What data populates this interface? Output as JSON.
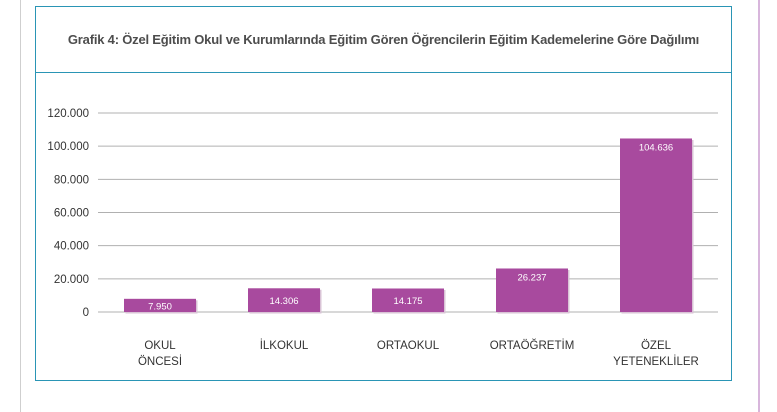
{
  "chart_data": {
    "type": "bar",
    "title": "Grafik 4: Özel Eğitim Okul ve Kurumlarında Eğitim Gören Öğrencilerin Eğitim Kademelerine Göre Dağılımı",
    "categories": [
      [
        "OKUL",
        "ÖNCESİ"
      ],
      [
        "İLKOKUL"
      ],
      [
        "ORTAOKUL"
      ],
      [
        "ORTAÖĞRETİM"
      ],
      [
        "ÖZEL",
        "YETENEKLİLER"
      ]
    ],
    "values": [
      7950,
      14306,
      14175,
      26237,
      104636
    ],
    "data_labels": [
      "7.950",
      "14.306",
      "14.175",
      "26.237",
      "104.636"
    ],
    "y_ticks": [
      0,
      20000,
      40000,
      60000,
      80000,
      100000,
      120000
    ],
    "y_tick_labels": [
      "0",
      "20.000",
      "40.000",
      "60.000",
      "80.000",
      "100.000",
      "120.000"
    ],
    "ylim": [
      0,
      120000
    ],
    "grid": true,
    "legend": "none",
    "colors": {
      "bar": "#a84a9e",
      "grid": "#b0b0b0",
      "frame": "#2a95b5"
    }
  }
}
